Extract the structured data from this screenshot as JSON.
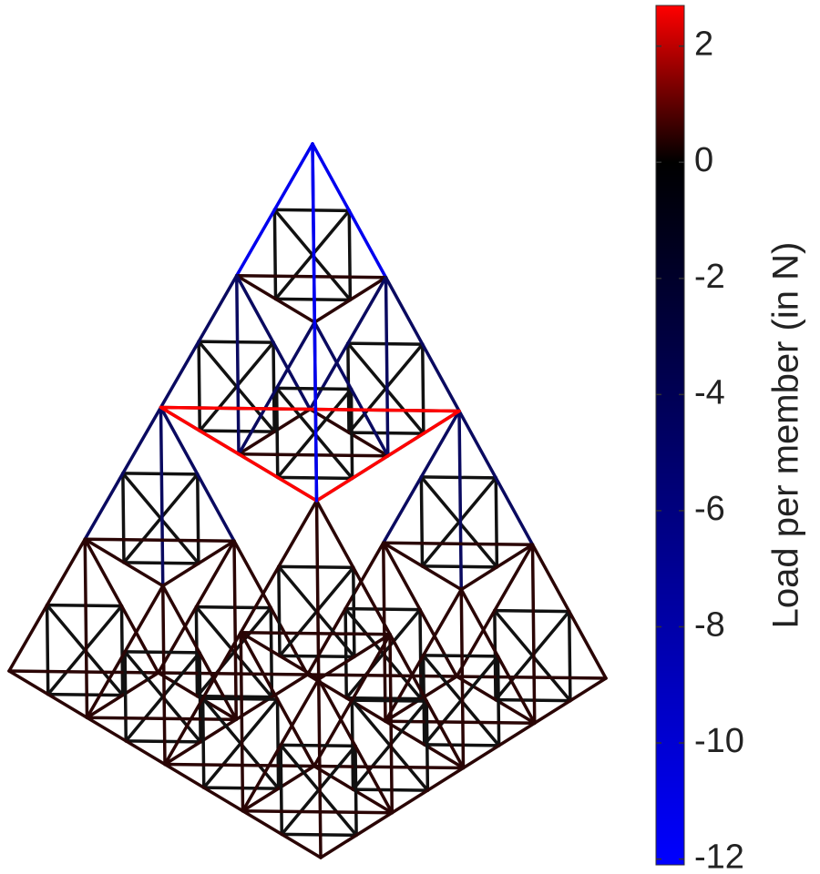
{
  "chart_data": {
    "type": "colorbar",
    "colorbar_label": "Load per member (in N)",
    "ylim": [
      -12.1,
      2.7
    ],
    "yticks": [
      2,
      0,
      -2,
      -4,
      -6,
      -8,
      -10,
      -12
    ],
    "colormap": [
      {
        "value": -12.1,
        "color": "#0000ff"
      },
      {
        "value": 0,
        "color": "#000000"
      },
      {
        "value": 2.7,
        "color": "#ff0000"
      }
    ]
  }
}
